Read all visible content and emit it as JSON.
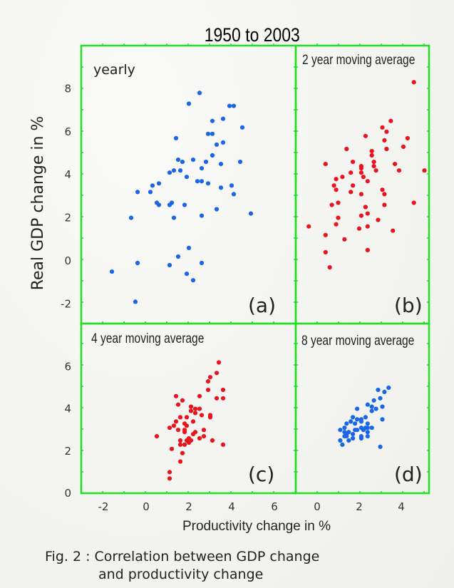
{
  "chart_data": {
    "type": "scatter",
    "title": "1950 to 2003",
    "ylabel": "Real GDP change in %",
    "xlabel": "Productivity change in %",
    "caption": [
      "Fig. 2 : Correlation between GDP change",
      "and productivity change"
    ],
    "colors": {
      "frame": "#22e022",
      "blue": "#1a66e6",
      "red": "#e8141e"
    },
    "grid": false,
    "panels": [
      {
        "id": "a",
        "label": "yearly",
        "corner_label": "(a)",
        "color": "blue",
        "xlim": [
          -3,
          7
        ],
        "ylim": [
          -2.9,
          10
        ],
        "yticks": [
          8,
          6,
          4,
          2,
          0,
          -2
        ],
        "points": [
          [
            2.5,
            7.8
          ],
          [
            2.0,
            7.3
          ],
          [
            3.9,
            7.2
          ],
          [
            4.1,
            7.2
          ],
          [
            3.1,
            6.5
          ],
          [
            3.6,
            6.6
          ],
          [
            4.5,
            6.2
          ],
          [
            2.9,
            5.9
          ],
          [
            3.1,
            5.9
          ],
          [
            1.4,
            5.7
          ],
          [
            3.3,
            5.4
          ],
          [
            3.6,
            5.5
          ],
          [
            3.1,
            4.9
          ],
          [
            1.5,
            4.7
          ],
          [
            1.7,
            4.6
          ],
          [
            2.2,
            4.7
          ],
          [
            2.8,
            4.6
          ],
          [
            3.5,
            4.5
          ],
          [
            4.4,
            4.6
          ],
          [
            2.6,
            4.3
          ],
          [
            1.1,
            4.1
          ],
          [
            1.3,
            4.2
          ],
          [
            1.6,
            4.2
          ],
          [
            1.9,
            3.9
          ],
          [
            2.4,
            3.7
          ],
          [
            2.6,
            3.7
          ],
          [
            0.6,
            3.6
          ],
          [
            0.3,
            3.5
          ],
          [
            2.9,
            3.6
          ],
          [
            3.5,
            3.4
          ],
          [
            4.0,
            3.5
          ],
          [
            -0.4,
            3.2
          ],
          [
            0.2,
            3.2
          ],
          [
            4.1,
            3.1
          ],
          [
            0.5,
            2.7
          ],
          [
            0.6,
            2.6
          ],
          [
            1.1,
            2.6
          ],
          [
            1.2,
            2.7
          ],
          [
            1.8,
            2.6
          ],
          [
            3.3,
            2.4
          ],
          [
            -0.7,
            2.0
          ],
          [
            1.3,
            2.0
          ],
          [
            2.6,
            2.1
          ],
          [
            4.9,
            2.2
          ],
          [
            2.0,
            0.6
          ],
          [
            1.5,
            0.2
          ],
          [
            -0.4,
            -0.1
          ],
          [
            1.1,
            -0.2
          ],
          [
            2.6,
            -0.1
          ],
          [
            -1.6,
            -0.5
          ],
          [
            1.9,
            -0.6
          ],
          [
            2.2,
            -0.9
          ],
          [
            -0.5,
            -1.9
          ]
        ]
      },
      {
        "id": "b",
        "label": "2 year moving average",
        "corner_label": "(b)",
        "color": "red",
        "xlim": [
          -1,
          5.4
        ],
        "ylim": [
          -2.9,
          10
        ],
        "points": [
          [
            4.6,
            8.3
          ],
          [
            3.5,
            6.5
          ],
          [
            3.1,
            6.2
          ],
          [
            3.3,
            6.0
          ],
          [
            2.3,
            5.8
          ],
          [
            4.3,
            5.7
          ],
          [
            3.2,
            5.6
          ],
          [
            4.1,
            5.3
          ],
          [
            1.4,
            5.2
          ],
          [
            2.6,
            5.1
          ],
          [
            3.3,
            5.2
          ],
          [
            2.6,
            4.9
          ],
          [
            2.7,
            4.6
          ],
          [
            1.7,
            4.6
          ],
          [
            0.4,
            4.5
          ],
          [
            3.7,
            4.5
          ],
          [
            2.1,
            4.4
          ],
          [
            2.7,
            4.4
          ],
          [
            2.1,
            4.3
          ],
          [
            3.9,
            4.2
          ],
          [
            5.1,
            4.2
          ],
          [
            2.8,
            4.2
          ],
          [
            1.6,
            4.1
          ],
          [
            2.1,
            4.1
          ],
          [
            1.2,
            3.9
          ],
          [
            2.2,
            3.9
          ],
          [
            0.9,
            3.8
          ],
          [
            2.4,
            3.7
          ],
          [
            1.7,
            3.5
          ],
          [
            0.8,
            3.5
          ],
          [
            0.9,
            3.3
          ],
          [
            1.6,
            3.2
          ],
          [
            2.1,
            3.1
          ],
          [
            3.1,
            3.3
          ],
          [
            3.2,
            3.1
          ],
          [
            0.7,
            2.6
          ],
          [
            1.0,
            2.7
          ],
          [
            3.2,
            2.6
          ],
          [
            4.6,
            2.7
          ],
          [
            2.3,
            2.5
          ],
          [
            1.0,
            2.0
          ],
          [
            2.1,
            2.1
          ],
          [
            2.4,
            2.2
          ],
          [
            2.9,
            1.9
          ],
          [
            0.9,
            1.7
          ],
          [
            -0.4,
            1.6
          ],
          [
            2.0,
            1.5
          ],
          [
            2.4,
            1.6
          ],
          [
            3.6,
            1.4
          ],
          [
            0.4,
            1.2
          ],
          [
            1.3,
            1.0
          ],
          [
            2.4,
            0.5
          ],
          [
            0.4,
            0.4
          ],
          [
            0.6,
            -0.3
          ]
        ]
      },
      {
        "id": "c",
        "label": "4 year moving average",
        "corner_label": "(c)",
        "color": "red",
        "xlim": [
          -3,
          7
        ],
        "ylim": [
          0,
          7.9
        ],
        "yticks": [
          6,
          4,
          2,
          0
        ],
        "xticks": [
          -2,
          0,
          2,
          4,
          6
        ],
        "points": [
          [
            3.4,
            6.2
          ],
          [
            3.3,
            5.7
          ],
          [
            3.0,
            5.5
          ],
          [
            2.9,
            5.3
          ],
          [
            2.9,
            4.9
          ],
          [
            3.6,
            4.9
          ],
          [
            1.4,
            4.6
          ],
          [
            2.5,
            4.6
          ],
          [
            3.3,
            4.5
          ],
          [
            3.6,
            4.5
          ],
          [
            1.5,
            4.2
          ],
          [
            1.7,
            4.4
          ],
          [
            2.1,
            4.1
          ],
          [
            2.3,
            4.0
          ],
          [
            2.5,
            4.0
          ],
          [
            2.1,
            3.9
          ],
          [
            2.3,
            3.8
          ],
          [
            3.0,
            3.7
          ],
          [
            2.6,
            3.7
          ],
          [
            1.9,
            3.6
          ],
          [
            1.6,
            3.6
          ],
          [
            3.0,
            3.6
          ],
          [
            1.4,
            3.4
          ],
          [
            2.2,
            3.4
          ],
          [
            1.8,
            3.3
          ],
          [
            1.3,
            3.2
          ],
          [
            1.9,
            3.2
          ],
          [
            1.1,
            3.1
          ],
          [
            1.8,
            3.0
          ],
          [
            2.7,
            3.0
          ],
          [
            1.5,
            3.0
          ],
          [
            2.3,
            2.9
          ],
          [
            1.8,
            2.9
          ],
          [
            2.2,
            2.8
          ],
          [
            0.5,
            2.7
          ],
          [
            2.7,
            2.7
          ],
          [
            2.0,
            2.6
          ],
          [
            2.5,
            2.6
          ],
          [
            1.9,
            2.5
          ],
          [
            3.1,
            2.5
          ],
          [
            2.1,
            2.5
          ],
          [
            1.6,
            2.5
          ],
          [
            2.0,
            2.4
          ],
          [
            1.6,
            2.3
          ],
          [
            1.8,
            2.3
          ],
          [
            3.6,
            2.3
          ],
          [
            2.0,
            2.4
          ],
          [
            1.2,
            2.1
          ],
          [
            1.7,
            1.9
          ],
          [
            1.6,
            1.5
          ],
          [
            1.1,
            1.0
          ],
          [
            1.1,
            0.7
          ]
        ]
      },
      {
        "id": "d",
        "label": "8 year moving average",
        "corner_label": "(d)",
        "color": "blue",
        "xlim": [
          -1,
          5.4
        ],
        "ylim": [
          0,
          7.9
        ],
        "xticks": [
          0,
          2,
          4
        ],
        "points": [
          [
            3.4,
            5.0
          ],
          [
            2.9,
            4.9
          ],
          [
            3.2,
            4.8
          ],
          [
            3.0,
            4.5
          ],
          [
            2.7,
            4.4
          ],
          [
            2.4,
            4.2
          ],
          [
            3.1,
            4.1
          ],
          [
            2.6,
            4.1
          ],
          [
            2.8,
            4.0
          ],
          [
            2.6,
            3.9
          ],
          [
            1.9,
            4.0
          ],
          [
            3.1,
            3.5
          ],
          [
            2.3,
            3.6
          ],
          [
            2.1,
            3.5
          ],
          [
            1.9,
            3.5
          ],
          [
            1.7,
            3.6
          ],
          [
            1.6,
            3.4
          ],
          [
            1.4,
            3.3
          ],
          [
            2.1,
            3.4
          ],
          [
            2.4,
            3.3
          ],
          [
            1.8,
            3.3
          ],
          [
            2.1,
            3.1
          ],
          [
            2.4,
            3.1
          ],
          [
            2.6,
            3.1
          ],
          [
            2.3,
            3.1
          ],
          [
            1.1,
            3.0
          ],
          [
            1.3,
            3.1
          ],
          [
            1.8,
            3.0
          ],
          [
            1.9,
            3.0
          ],
          [
            2.2,
            3.0
          ],
          [
            1.3,
            2.9
          ],
          [
            1.5,
            2.9
          ],
          [
            2.4,
            2.9
          ],
          [
            1.4,
            2.8
          ],
          [
            1.7,
            2.8
          ],
          [
            2.1,
            2.7
          ],
          [
            1.3,
            2.7
          ],
          [
            1.4,
            2.7
          ],
          [
            2.4,
            2.7
          ],
          [
            1.5,
            2.5
          ],
          [
            1.7,
            2.6
          ],
          [
            2.1,
            2.6
          ],
          [
            1.1,
            2.5
          ],
          [
            1.2,
            2.3
          ],
          [
            3.0,
            2.2
          ]
        ]
      }
    ]
  }
}
